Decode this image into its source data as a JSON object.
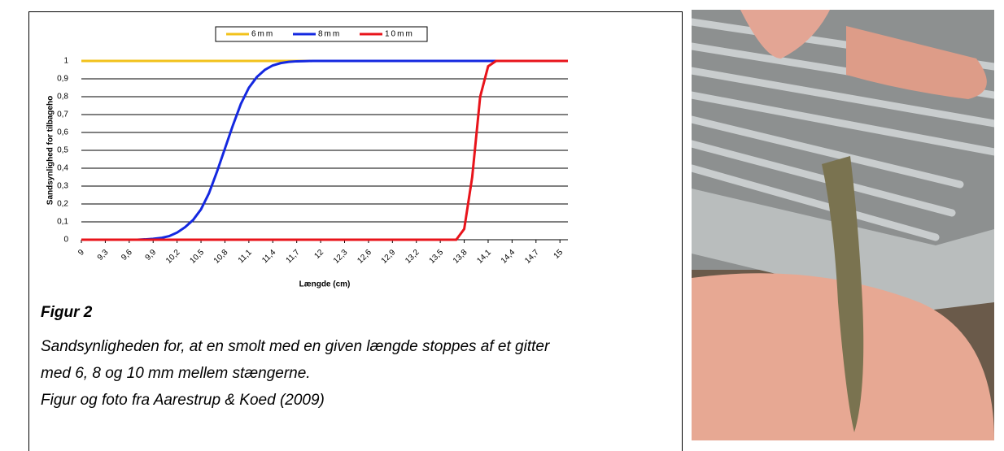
{
  "chart_data": {
    "type": "line",
    "y_label": "Sandsynlighed for tilbageho",
    "x_label": "Længde (cm)",
    "x": [
      9,
      9.1,
      9.2,
      9.3,
      9.4,
      9.5,
      9.6,
      9.7,
      9.8,
      9.9,
      10,
      10.1,
      10.2,
      10.3,
      10.4,
      10.5,
      10.6,
      10.7,
      10.8,
      10.9,
      11,
      11.1,
      11.2,
      11.3,
      11.4,
      11.5,
      11.6,
      11.7,
      11.8,
      11.9,
      12,
      12.1,
      12.2,
      12.3,
      12.4,
      12.5,
      12.6,
      12.7,
      12.8,
      12.9,
      13,
      13.1,
      13.2,
      13.3,
      13.4,
      13.5,
      13.6,
      13.7,
      13.8,
      13.9,
      14,
      14.1,
      14.2,
      14.3,
      14.4,
      14.5,
      14.6,
      14.7,
      14.8,
      14.9,
      15,
      15.1
    ],
    "series": [
      {
        "name": "6mm",
        "color": "#f2c21b",
        "values": [
          1,
          1,
          1,
          1,
          1,
          1,
          1,
          1,
          1,
          1,
          1,
          1,
          1,
          1,
          1,
          1,
          1,
          1,
          1,
          1,
          1,
          1,
          1,
          1,
          1,
          1,
          1,
          1,
          1,
          1,
          1,
          1,
          1,
          1,
          1,
          1,
          1,
          1,
          1,
          1,
          1,
          1,
          1,
          1,
          1,
          1,
          1,
          1,
          1,
          1,
          1,
          1,
          1,
          1,
          1,
          1,
          1,
          1,
          1,
          1,
          1,
          1
        ]
      },
      {
        "name": "8mm",
        "color": "#1428e0",
        "values": [
          null,
          null,
          null,
          null,
          null,
          null,
          null,
          0,
          0.002,
          0.005,
          0.01,
          0.02,
          0.04,
          0.07,
          0.11,
          0.17,
          0.26,
          0.38,
          0.51,
          0.64,
          0.76,
          0.85,
          0.91,
          0.95,
          0.975,
          0.988,
          0.995,
          0.998,
          0.999,
          1,
          1,
          1,
          1,
          1,
          1,
          1,
          1,
          1,
          1,
          1,
          1,
          1,
          1,
          1,
          1,
          1,
          1,
          1,
          1,
          1,
          1,
          1,
          1,
          1,
          1,
          1,
          1,
          1,
          1,
          1,
          1,
          1
        ]
      },
      {
        "name": "10mm",
        "color": "#e8141b",
        "values": [
          0,
          0,
          0,
          0,
          0,
          0,
          0,
          0,
          0,
          0,
          0,
          0,
          0,
          0,
          0,
          0,
          0,
          0,
          0,
          0,
          0,
          0,
          0,
          0,
          0,
          0,
          0,
          0,
          0,
          0,
          0,
          0,
          0,
          0,
          0,
          0,
          0,
          0,
          0,
          0,
          0,
          0,
          0,
          0,
          0,
          0,
          0,
          0,
          0.06,
          0.35,
          0.8,
          0.97,
          1,
          1,
          1,
          1,
          1,
          1,
          1,
          1,
          1,
          1
        ]
      }
    ],
    "xlim": [
      9,
      15.1
    ],
    "xticks": [
      9,
      {
        "value": 9.3,
        "label": "9,3"
      },
      {
        "value": 9.6,
        "label": "9,6"
      },
      {
        "value": 9.9,
        "label": "9,9"
      },
      {
        "value": 10.2,
        "label": "10,2"
      },
      {
        "value": 10.5,
        "label": "10,5"
      },
      {
        "value": 10.8,
        "label": "10,8"
      },
      {
        "value": 11.1,
        "label": "11,1"
      },
      {
        "value": 11.4,
        "label": "11,4"
      },
      {
        "value": 11.7,
        "label": "11,7"
      },
      12,
      {
        "value": 12.3,
        "label": "12,3"
      },
      {
        "value": 12.6,
        "label": "12,6"
      },
      {
        "value": 12.9,
        "label": "12,9"
      },
      {
        "value": 13.2,
        "label": "13,2"
      },
      {
        "value": 13.5,
        "label": "13,5"
      },
      {
        "value": 13.8,
        "label": "13,8"
      },
      {
        "value": 14.1,
        "label": "14,1"
      },
      {
        "value": 14.4,
        "label": "14,4"
      },
      {
        "value": 14.7,
        "label": "14,7"
      },
      15
    ],
    "ylim": [
      0,
      1
    ],
    "yticks": [
      0,
      {
        "value": 0.1,
        "label": "0,1"
      },
      {
        "value": 0.2,
        "label": "0,2"
      },
      {
        "value": 0.3,
        "label": "0,3"
      },
      {
        "value": 0.4,
        "label": "0,4"
      },
      {
        "value": 0.5,
        "label": "0,5"
      },
      {
        "value": 0.6,
        "label": "0,6"
      },
      {
        "value": 0.7,
        "label": "0,7"
      },
      {
        "value": 0.8,
        "label": "0,8"
      },
      {
        "value": 0.9,
        "label": "0,9"
      },
      1
    ],
    "grid": true
  },
  "caption": {
    "title": "Figur 2",
    "lines": [
      "Sandsynligheden for, at en smolt med en given længde stoppes af et gitter",
      "med 6, 8 og 10 mm mellem stængerne.",
      "Figur og foto fra Aarestrup & Koed (2009)"
    ]
  }
}
